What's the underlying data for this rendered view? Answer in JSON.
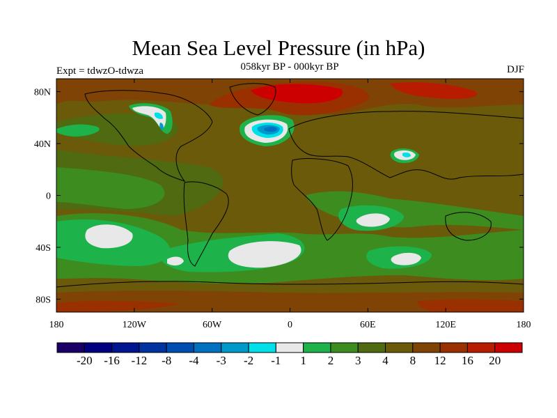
{
  "title": "Mean Sea Level Pressure (in hPa)",
  "subtitle": "058kyr BP - 000kyr BP",
  "experiment": "Expt = tdwzO-tdwza",
  "season": "DJF",
  "map": {
    "lon_range": [
      -180,
      180
    ],
    "lat_range": [
      -90,
      90
    ],
    "lat_ticks": [
      {
        "value": 80,
        "label": "80N"
      },
      {
        "value": 40,
        "label": "40N"
      },
      {
        "value": 0,
        "label": "0"
      },
      {
        "value": -40,
        "label": "40S"
      },
      {
        "value": -80,
        "label": "80S"
      }
    ],
    "lon_ticks": [
      {
        "value": -180,
        "label": "180"
      },
      {
        "value": -120,
        "label": "120W"
      },
      {
        "value": -60,
        "label": "60W"
      },
      {
        "value": 0,
        "label": "0"
      },
      {
        "value": 60,
        "label": "60E"
      },
      {
        "value": 120,
        "label": "120E"
      },
      {
        "value": 180,
        "label": "180"
      }
    ]
  },
  "colorbar": {
    "colors": [
      "#1a0066",
      "#000080",
      "#00158f",
      "#0033a0",
      "#004db0",
      "#0070c0",
      "#0099cc",
      "#00e0e8",
      "#e8e8e8",
      "#1db34a",
      "#3d8c1f",
      "#4f6a10",
      "#6b5a0a",
      "#7f4305",
      "#9a2f00",
      "#b81c00",
      "#cc0000"
    ],
    "labels": [
      "-20",
      "-16",
      "-12",
      "-8",
      "-4",
      "-3",
      "-2",
      "-1",
      "1",
      "2",
      "3",
      "4",
      "8",
      "12",
      "16",
      "20"
    ]
  }
}
